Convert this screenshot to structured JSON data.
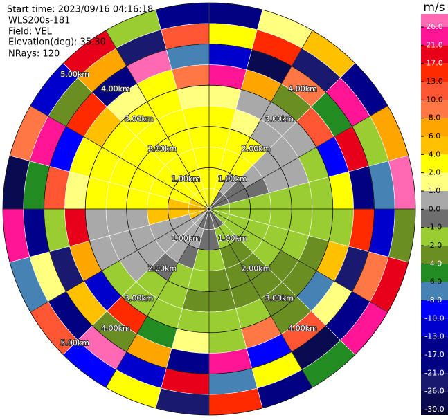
{
  "chart_data": {
    "type": "ppi",
    "info": [
      "Start time: 2023/09/16 04:16:18",
      "WLS200s-181",
      "Field: VEL",
      "Elevation(deg): 35.30",
      "NRays: 120"
    ],
    "rlim": [
      0,
      5
    ],
    "range_rings": [
      {
        "value": 1,
        "label": "1.00km"
      },
      {
        "value": 2,
        "label": "2.00km"
      },
      {
        "value": 3,
        "label": "3.00km"
      },
      {
        "value": 4,
        "label": "4.00km"
      },
      {
        "value": 5,
        "label": "5.00km"
      }
    ],
    "colorbar": {
      "label": "m/s",
      "ticks": [
        {
          "value": 26,
          "label": "26.0"
        },
        {
          "value": 21,
          "label": "21.0"
        },
        {
          "value": 17,
          "label": "17.0"
        },
        {
          "value": 13,
          "label": "13.0"
        },
        {
          "value": 10,
          "label": "10.0"
        },
        {
          "value": 8,
          "label": "8.0"
        },
        {
          "value": 6,
          "label": "6.0"
        },
        {
          "value": 4,
          "label": "4.0"
        },
        {
          "value": 2,
          "label": "2.0"
        },
        {
          "value": 1,
          "label": "1.0"
        },
        {
          "value": 0,
          "label": "0.0"
        },
        {
          "value": -1,
          "label": "-1.0"
        },
        {
          "value": -2,
          "label": "-2.0"
        },
        {
          "value": -4,
          "label": "-4.0"
        },
        {
          "value": -6,
          "label": "-6.0"
        },
        {
          "value": -8,
          "label": "-8.0"
        },
        {
          "value": -10,
          "label": "-10.0"
        },
        {
          "value": -13,
          "label": "-13.0"
        },
        {
          "value": -17,
          "label": "-17.0"
        },
        {
          "value": -21,
          "label": "-21.0"
        },
        {
          "value": -26,
          "label": "-26.0"
        },
        {
          "value": -30,
          "label": "-30.0"
        }
      ],
      "colors": [
        "#ff69b4",
        "#ff1493",
        "#e8001a",
        "#ff2a00",
        "#ff5533",
        "#ff7744",
        "#ffa500",
        "#ffc000",
        "#ffff00",
        "#ffff80",
        "#a9a9a9",
        "#6e6e6e",
        "#9acd32",
        "#6b8e23",
        "#228b22",
        "#4682b4",
        "#0000ff",
        "#0000cd",
        "#00008b",
        "#000080",
        "#191970",
        "#0a0a50",
        "#050530"
      ]
    },
    "values": [
      [
        3,
        3,
        3,
        3,
        3,
        1.5,
        24,
        -11.5,
        3,
        -19
      ],
      [
        3,
        3,
        3,
        3,
        1.5,
        0.5,
        7,
        -28,
        15,
        1.5
      ],
      [
        -0.5,
        0.5,
        3,
        3,
        0.5,
        0.5,
        -3,
        9,
        -23.5,
        5
      ],
      [
        -0.5,
        -0.5,
        0.5,
        0.5,
        0.5,
        0.5,
        11,
        -5,
        24,
        -15
      ],
      [
        -0.5,
        -0.5,
        -0.5,
        0.5,
        0.5,
        -1.5,
        -9,
        19,
        -1.5,
        7
      ],
      [
        -1.5,
        -1.5,
        -1.5,
        -1.5,
        -1.5,
        -1.5,
        3,
        -19,
        -7,
        28
      ],
      [
        -1.5,
        -1.5,
        -1.5,
        -1.5,
        -1.5,
        -1.5,
        -1.5,
        15,
        -11.5,
        -3
      ],
      [
        -1.5,
        -1.5,
        -1.5,
        -1.5,
        -1.5,
        -3,
        5,
        -23.5,
        9,
        19
      ],
      [
        -1.5,
        -1.5,
        -1.5,
        -1.5,
        -3,
        -3,
        -7,
        1.5,
        -15,
        24
      ],
      [
        -0.5,
        -1.5,
        -3,
        -3,
        -3,
        -3,
        -3,
        11,
        -28,
        -5
      ],
      [
        -0.5,
        -1.5,
        -3,
        -3,
        -3,
        -1.5,
        9,
        -9,
        3,
        -19
      ],
      [
        -0.5,
        -0.5,
        -1.5,
        -3,
        -3,
        -1.5,
        -1.5,
        24,
        -7,
        15
      ],
      [
        -0.5,
        -0.5,
        -1.5,
        -1.5,
        -3,
        -1.5,
        1.5,
        -15,
        19,
        -23.5
      ],
      [
        -0.5,
        0.5,
        -0.5,
        -1.5,
        -1.5,
        -1.5,
        -5,
        7,
        -11.5,
        3
      ],
      [
        0.5,
        0.5,
        0.5,
        -0.5,
        -1.5,
        -1.5,
        15,
        -3,
        28,
        -9
      ],
      [
        0.5,
        0.5,
        0.5,
        0.5,
        0.5,
        -1.5,
        -11.5,
        5,
        -19,
        11
      ],
      [
        5,
        0.5,
        0.5,
        0.5,
        0.5,
        0.5,
        7,
        -23.5,
        1.5,
        -7
      ],
      [
        5,
        5,
        5,
        0.5,
        0.5,
        0.5,
        19,
        -1.5,
        -15,
        24
      ],
      [
        5,
        5,
        3,
        3,
        3,
        3,
        1.5,
        11,
        -5,
        -28
      ],
      [
        5,
        3,
        3,
        3,
        3,
        3,
        3,
        -9,
        24,
        9
      ],
      [
        3,
        3,
        3,
        3,
        3,
        3,
        5,
        15,
        -3,
        -11.5
      ],
      [
        3,
        3,
        3,
        3,
        3,
        3,
        1.5,
        -19,
        7,
        19
      ],
      [
        3,
        3,
        3,
        3,
        3,
        3,
        3,
        28,
        -23.5,
        -1.5
      ],
      [
        3,
        3,
        3,
        3,
        3,
        1.5,
        9,
        -7,
        11,
        -15
      ]
    ]
  }
}
